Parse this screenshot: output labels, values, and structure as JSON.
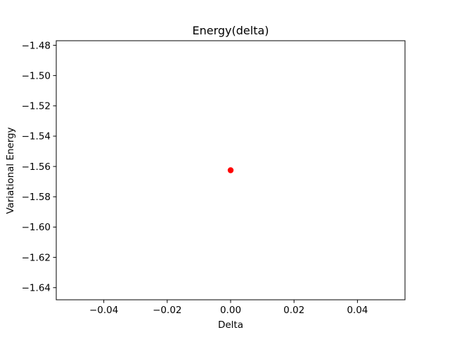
{
  "chart_data": {
    "type": "scatter",
    "title": "Energy(delta)",
    "xlabel": "Delta",
    "ylabel": "Variational Energy",
    "xlim": [
      -0.055,
      0.055
    ],
    "ylim": [
      -1.648,
      -1.477
    ],
    "xticks": [
      -0.04,
      -0.02,
      0.0,
      0.02,
      0.04
    ],
    "xtick_labels": [
      "−0.04",
      "−0.02",
      "0.00",
      "0.02",
      "0.04"
    ],
    "yticks": [
      -1.48,
      -1.5,
      -1.52,
      -1.54,
      -1.56,
      -1.58,
      -1.6,
      -1.62,
      -1.64
    ],
    "ytick_labels": [
      "−1.48",
      "−1.50",
      "−1.52",
      "−1.54",
      "−1.56",
      "−1.58",
      "−1.60",
      "−1.62",
      "−1.64"
    ],
    "grid": false,
    "series": [
      {
        "color": "#ff0000",
        "marker": "circle",
        "points": [
          {
            "x": 0.0,
            "y": -1.5625
          }
        ]
      }
    ]
  }
}
